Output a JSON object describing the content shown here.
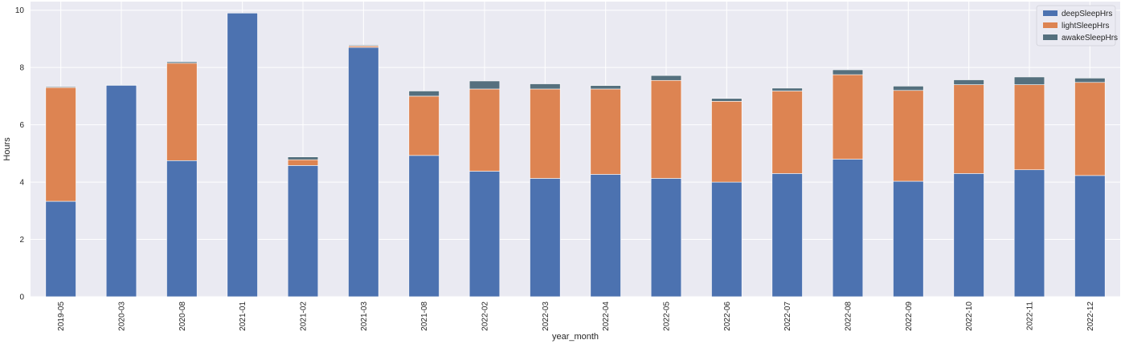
{
  "chart_data": {
    "type": "bar",
    "stacked": true,
    "title": "",
    "xlabel": "year_month",
    "ylabel": "Hours",
    "ylim": [
      0,
      10.3
    ],
    "yticks": [
      0,
      2,
      4,
      6,
      8,
      10
    ],
    "grid": true,
    "legend_position": "top-right",
    "categories": [
      "2019-05",
      "2020-03",
      "2020-08",
      "2021-01",
      "2021-02",
      "2021-03",
      "2021-08",
      "2022-02",
      "2022-03",
      "2022-04",
      "2022-05",
      "2022-06",
      "2022-07",
      "2022-08",
      "2022-09",
      "2022-10",
      "2022-11",
      "2022-12"
    ],
    "series": [
      {
        "name": "deepSleepHrs",
        "color": "#4c72b0",
        "values": [
          3.33,
          7.38,
          4.75,
          9.9,
          4.58,
          8.7,
          4.93,
          4.38,
          4.13,
          4.27,
          4.13,
          4.0,
          4.3,
          4.8,
          4.03,
          4.3,
          4.43,
          4.23
        ]
      },
      {
        "name": "lightSleepHrs",
        "color": "#dd8452",
        "values": [
          3.97,
          0.0,
          3.4,
          0.0,
          0.2,
          0.05,
          2.07,
          2.87,
          3.12,
          2.98,
          3.42,
          2.82,
          2.88,
          2.95,
          3.17,
          3.1,
          2.97,
          3.25
        ]
      },
      {
        "name": "awakeSleepHrs",
        "color": "#55707e",
        "values": [
          0.03,
          0.02,
          0.05,
          0.0,
          0.1,
          0.03,
          0.18,
          0.28,
          0.18,
          0.12,
          0.17,
          0.1,
          0.1,
          0.17,
          0.15,
          0.17,
          0.27,
          0.15
        ]
      }
    ]
  }
}
